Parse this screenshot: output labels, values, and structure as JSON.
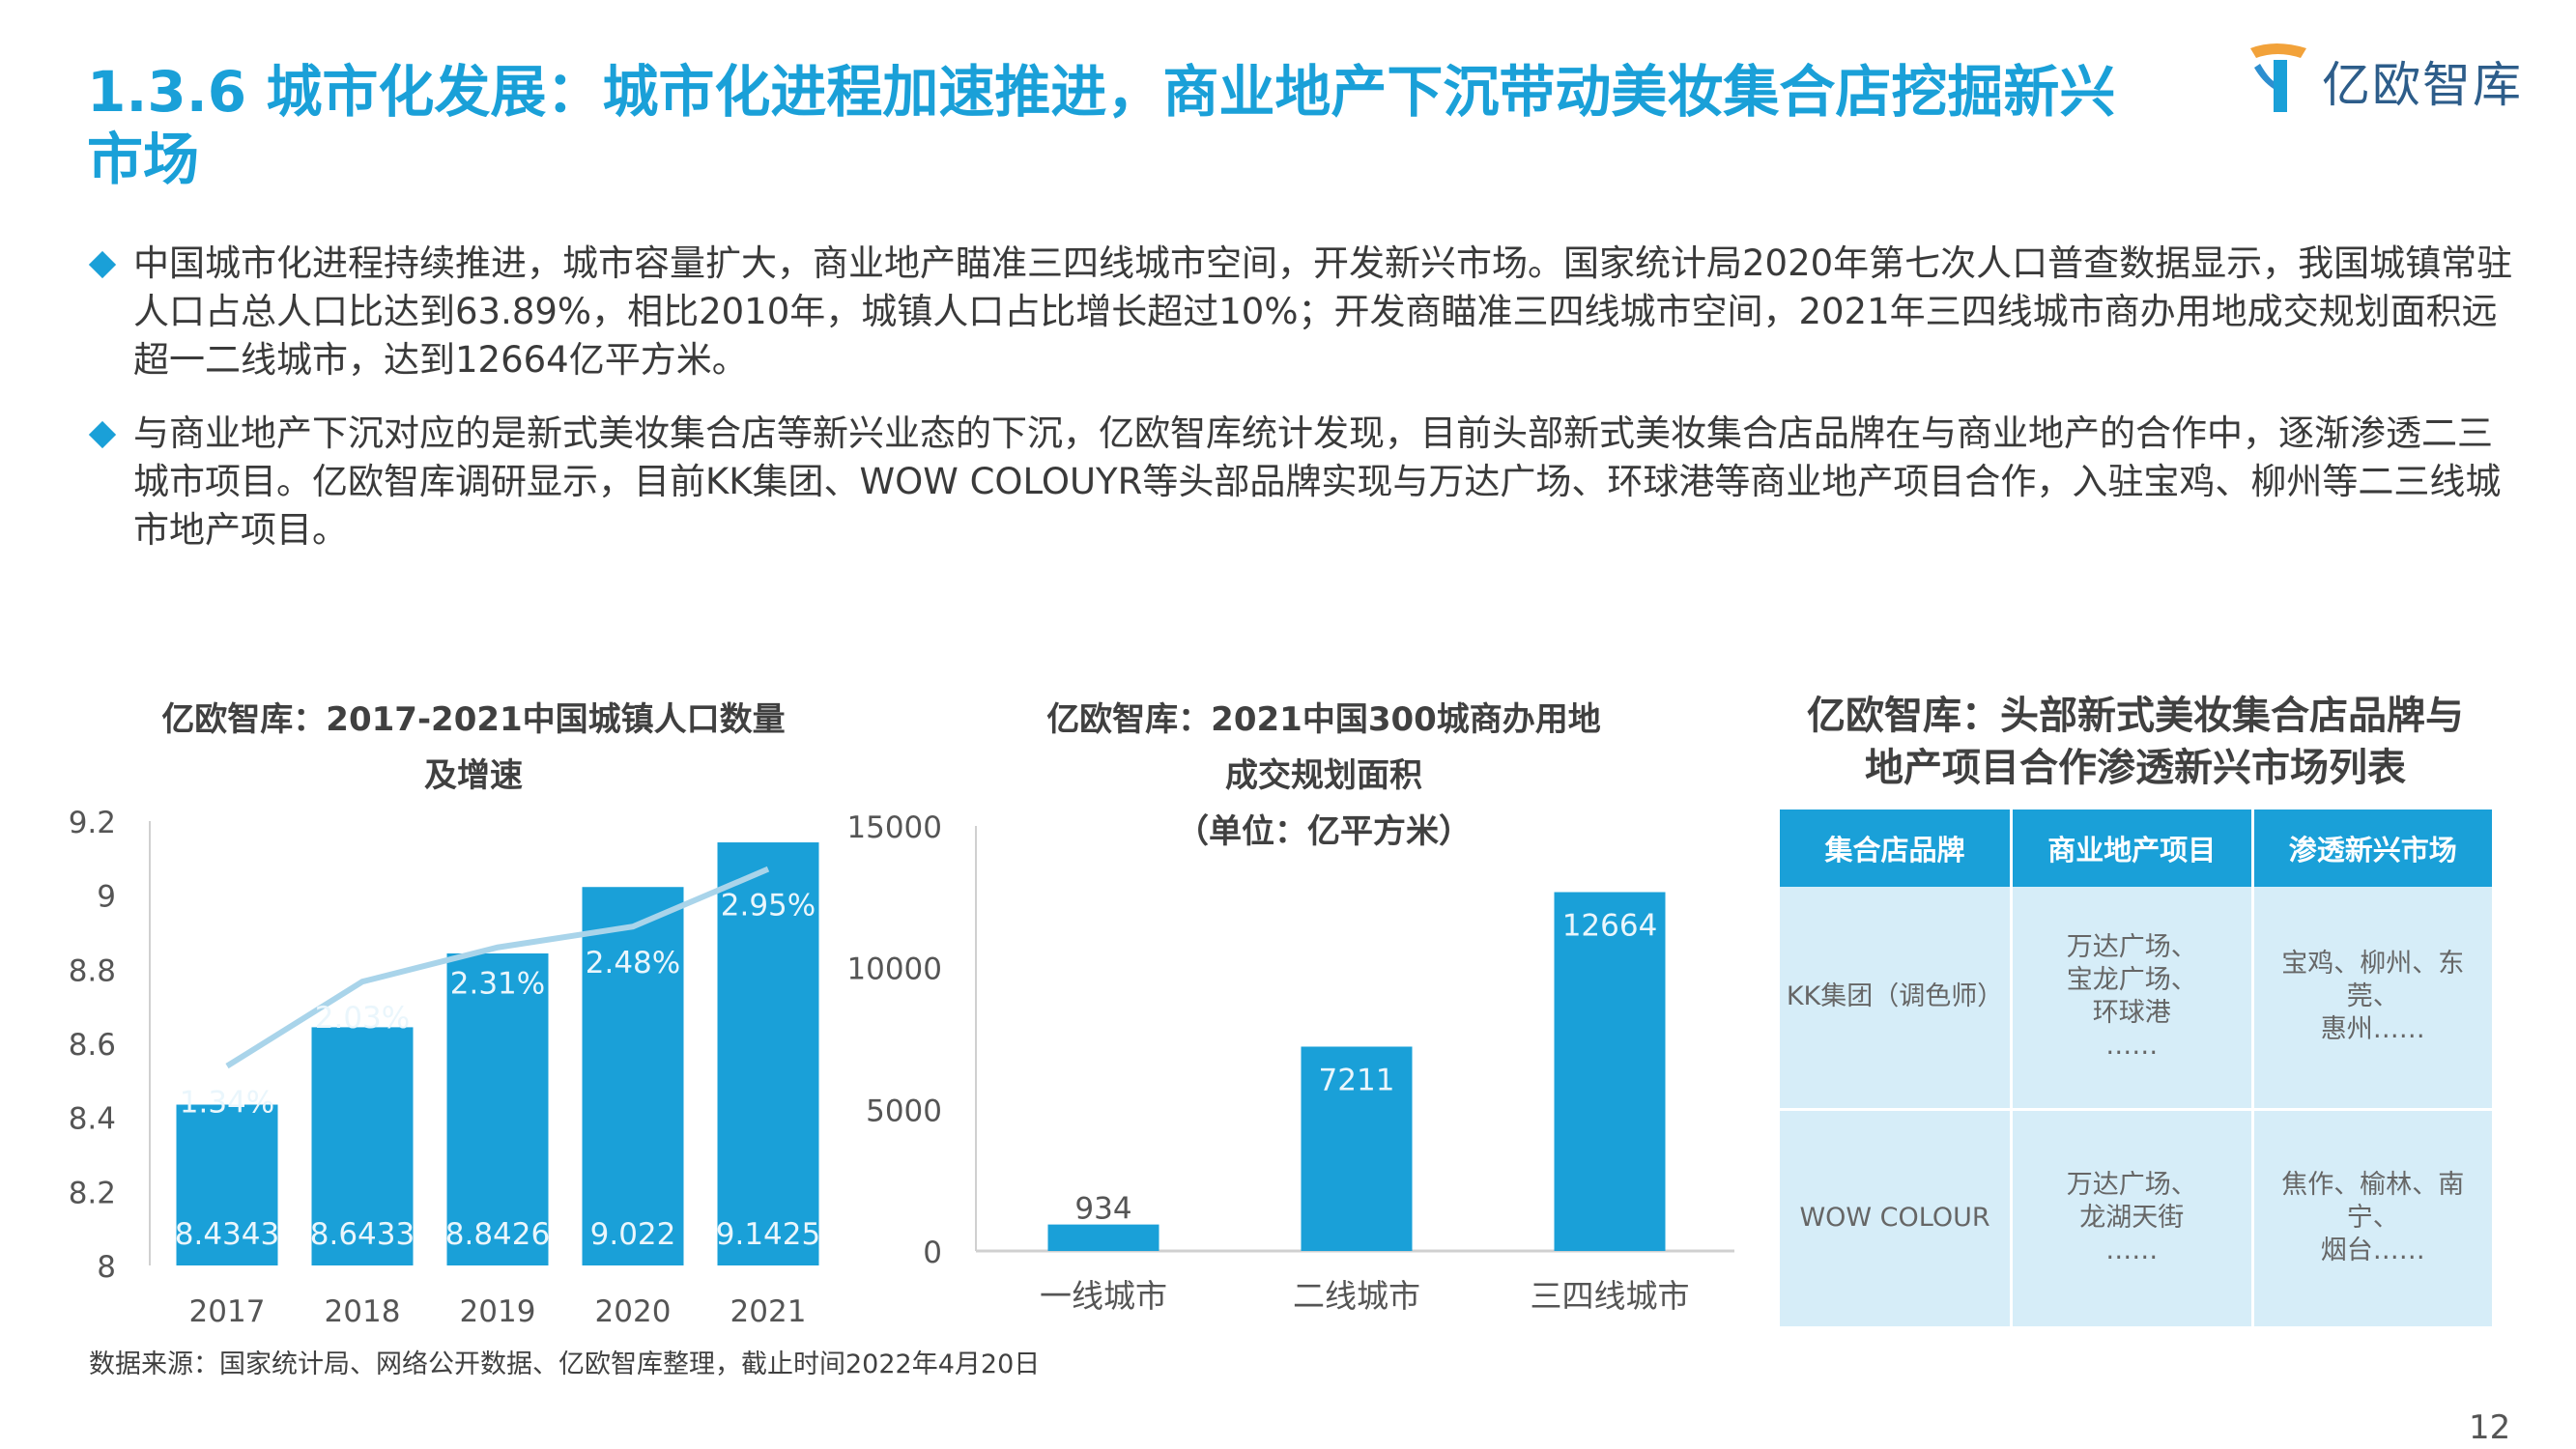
{
  "page": {
    "title": "1.3.6 城市化发展：城市化进程加速推进，商业地产下沉带动美妆集合店挖掘新兴市场",
    "logo_text": "亿欧智库",
    "page_number": "12",
    "source": "数据来源：国家统计局、网络公开数据、亿欧智库整理，截止时间2022年4月20日",
    "accent_color": "#1aa0d8",
    "line_color": "#a9d4ea"
  },
  "bullets": [
    "中国城市化进程持续推进，城市容量扩大，商业地产瞄准三四线城市空间，开发新兴市场。国家统计局2020年第七次人口普查数据显示，我国城镇常驻人口占总人口比达到63.89%，相比2010年，城镇人口占比增长超过10%；开发商瞄准三四线城市空间，2021年三四线城市商办用地成交规划面积远超一二线城市，达到12664亿平方米。",
    "与商业地产下沉对应的是新式美妆集合店等新兴业态的下沉，亿欧智库统计发现，目前头部新式美妆集合店品牌在与商业地产的合作中，逐渐渗透二三城市项目。亿欧智库调研显示，目前KK集团、WOW COLOUYR等头部品牌实现与万达广场、环球港等商业地产项目合作，入驻宝鸡、柳州等二三线城市地产项目。"
  ],
  "chart_data": [
    {
      "type": "bar",
      "title_line1": "亿欧智库：2017-2021中国城镇人口数量",
      "title_line2": "及增速",
      "categories": [
        "2017",
        "2018",
        "2019",
        "2020",
        "2021"
      ],
      "values": [
        8.4343,
        8.6433,
        8.8426,
        9.022,
        9.1425
      ],
      "value_labels": [
        "8.4343",
        "8.6433",
        "8.8426",
        "9.022",
        "9.1425"
      ],
      "growth": [
        1.34,
        2.03,
        2.31,
        2.48,
        2.95
      ],
      "growth_labels": [
        "1.34%",
        "2.03%",
        "2.31%",
        "2.48%",
        "2.95%"
      ],
      "yticks": [
        "8",
        "8.2",
        "8.4",
        "8.6",
        "8.8",
        "9",
        "9.2"
      ],
      "ylim": [
        8,
        9.2
      ]
    },
    {
      "type": "bar",
      "title_line1": "亿欧智库：2021中国300城商办用地",
      "title_line2": "成交规划面积",
      "title_line3": "（单位：亿平方米）",
      "categories": [
        "一线城市",
        "二线城市",
        "三四线城市"
      ],
      "values": [
        934,
        7211,
        12664
      ],
      "value_labels": [
        "934",
        "7211",
        "12664"
      ],
      "yticks": [
        "0",
        "5000",
        "10000",
        "15000"
      ],
      "ylim": [
        0,
        15000
      ]
    }
  ],
  "table": {
    "title_line1": "亿欧智库：头部新式美妆集合店品牌与",
    "title_line2": "地产项目合作渗透新兴市场列表",
    "headers": [
      "集合店品牌",
      "商业地产项目",
      "渗透新兴市场"
    ],
    "rows": [
      {
        "brand": "KK集团（调色师）",
        "projects": [
          "万达广场、",
          "宝龙广场、",
          "环球港",
          "……"
        ],
        "markets": [
          "宝鸡、柳州、东莞、",
          "惠州……"
        ]
      },
      {
        "brand": "WOW COLOUR",
        "projects": [
          "万达广场、",
          "龙湖天街",
          "……"
        ],
        "markets": [
          "焦作、榆林、南宁、",
          "烟台……"
        ]
      }
    ]
  }
}
